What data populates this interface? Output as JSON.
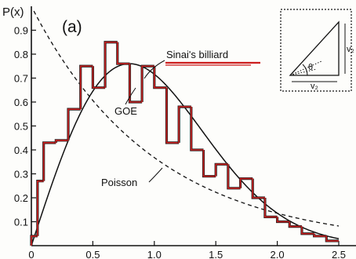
{
  "chart_data": {
    "type": "line",
    "panel_label": "(a)",
    "ylabel": "P(x)",
    "xlabel": "",
    "xlim": [
      0,
      2.5
    ],
    "ylim": [
      0,
      1.0
    ],
    "x_ticks": [
      {
        "value": 0,
        "label": "0"
      },
      {
        "value": 0.5,
        "label": "0.5"
      },
      {
        "value": 1.0,
        "label": "1.0"
      },
      {
        "value": 1.5,
        "label": "1.5"
      },
      {
        "value": 2.0,
        "label": "2.0"
      },
      {
        "value": 2.5,
        "label": "2.5"
      }
    ],
    "y_ticks": [
      {
        "value": 0.1,
        "label": "0.1"
      },
      {
        "value": 0.2,
        "label": "0.2"
      },
      {
        "value": 0.3,
        "label": "0.3"
      },
      {
        "value": 0.4,
        "label": "0.4"
      },
      {
        "value": 0.5,
        "label": "0.5"
      },
      {
        "value": 0.6,
        "label": "0.6"
      },
      {
        "value": 0.7,
        "label": "0.7"
      },
      {
        "value": 0.8,
        "label": "0.8"
      },
      {
        "value": 0.9,
        "label": "0.9"
      }
    ],
    "annotations": [
      {
        "text": "Sinai's billiard",
        "underline": true,
        "underline_color": "#cc1e1e"
      },
      {
        "text": "GOE"
      },
      {
        "text": "Poisson"
      }
    ],
    "histogram": {
      "name": "Sinai's billiard",
      "color": "#cc1e1e",
      "bin_edges": [
        0.0,
        0.05,
        0.1,
        0.2,
        0.3,
        0.4,
        0.5,
        0.6,
        0.7,
        0.8,
        0.9,
        1.0,
        1.1,
        1.2,
        1.3,
        1.4,
        1.5,
        1.6,
        1.7,
        1.8,
        1.9,
        2.0,
        2.1,
        2.2,
        2.3,
        2.4,
        2.5
      ],
      "values": [
        0.04,
        0.27,
        0.43,
        0.44,
        0.57,
        0.75,
        0.66,
        0.85,
        0.76,
        0.6,
        0.75,
        0.66,
        0.43,
        0.58,
        0.4,
        0.29,
        0.34,
        0.24,
        0.28,
        0.2,
        0.12,
        0.1,
        0.08,
        0.05,
        0.04,
        0.02
      ]
    },
    "curves": [
      {
        "name": "GOE",
        "style": "solid",
        "formula": "(pi/2) x exp(-pi x^2 / 4)"
      },
      {
        "name": "Poisson",
        "style": "dashed",
        "formula": "exp(-x)"
      }
    ],
    "inset": {
      "labels": [
        "θ",
        "v₂",
        "v₂"
      ]
    }
  },
  "colors": {
    "axis": "#111111",
    "histogram": "#cc1e1e",
    "background": "#fdfdfb"
  }
}
